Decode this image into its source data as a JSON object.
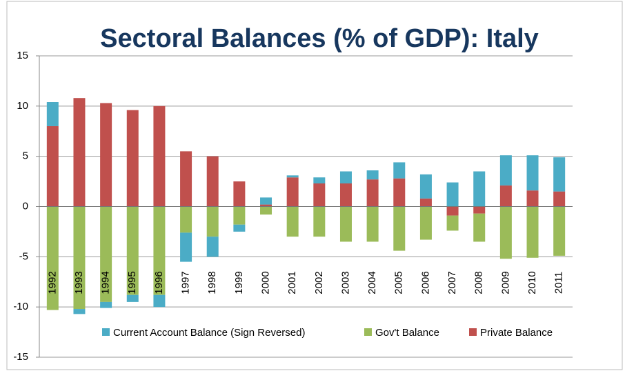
{
  "chart_data": {
    "type": "bar",
    "stacked": true,
    "title": "Sectoral Balances (% of GDP): Italy",
    "categories": [
      "1992",
      "1993",
      "1994",
      "1995",
      "1996",
      "1997",
      "1998",
      "1999",
      "2000",
      "2001",
      "2002",
      "2003",
      "2004",
      "2005",
      "2006",
      "2007",
      "2008",
      "2009",
      "2010",
      "2011"
    ],
    "series": [
      {
        "name": "Private Balance",
        "color": "#c0504d",
        "values": [
          8.0,
          10.8,
          10.3,
          9.6,
          10.0,
          5.5,
          5.0,
          2.5,
          0.2,
          2.9,
          2.3,
          2.3,
          2.7,
          2.8,
          0.8,
          -0.9,
          -0.7,
          2.1,
          1.6,
          1.5
        ]
      },
      {
        "name": "Gov't Balance",
        "color": "#9bbb59",
        "values": [
          -10.3,
          -10.2,
          -9.5,
          -8.8,
          -8.8,
          -2.6,
          -3.0,
          -1.8,
          -0.8,
          -3.0,
          -3.0,
          -3.5,
          -3.5,
          -4.4,
          -3.3,
          -1.5,
          -2.8,
          -5.2,
          -5.1,
          -4.9
        ]
      },
      {
        "name": "Current Account Balance (Sign Reversed)",
        "color": "#4bacc6",
        "values": [
          2.4,
          -0.5,
          -0.6,
          -0.7,
          -1.2,
          -2.9,
          -2.0,
          -0.7,
          0.7,
          0.2,
          0.6,
          1.2,
          0.9,
          1.6,
          2.4,
          2.4,
          3.5,
          3.0,
          3.5,
          3.4
        ]
      }
    ],
    "legend_order": [
      2,
      1,
      0
    ],
    "ylim": [
      -15,
      15
    ],
    "yticks": [
      -15,
      -10,
      -5,
      0,
      5,
      10,
      15
    ],
    "grid": true
  }
}
